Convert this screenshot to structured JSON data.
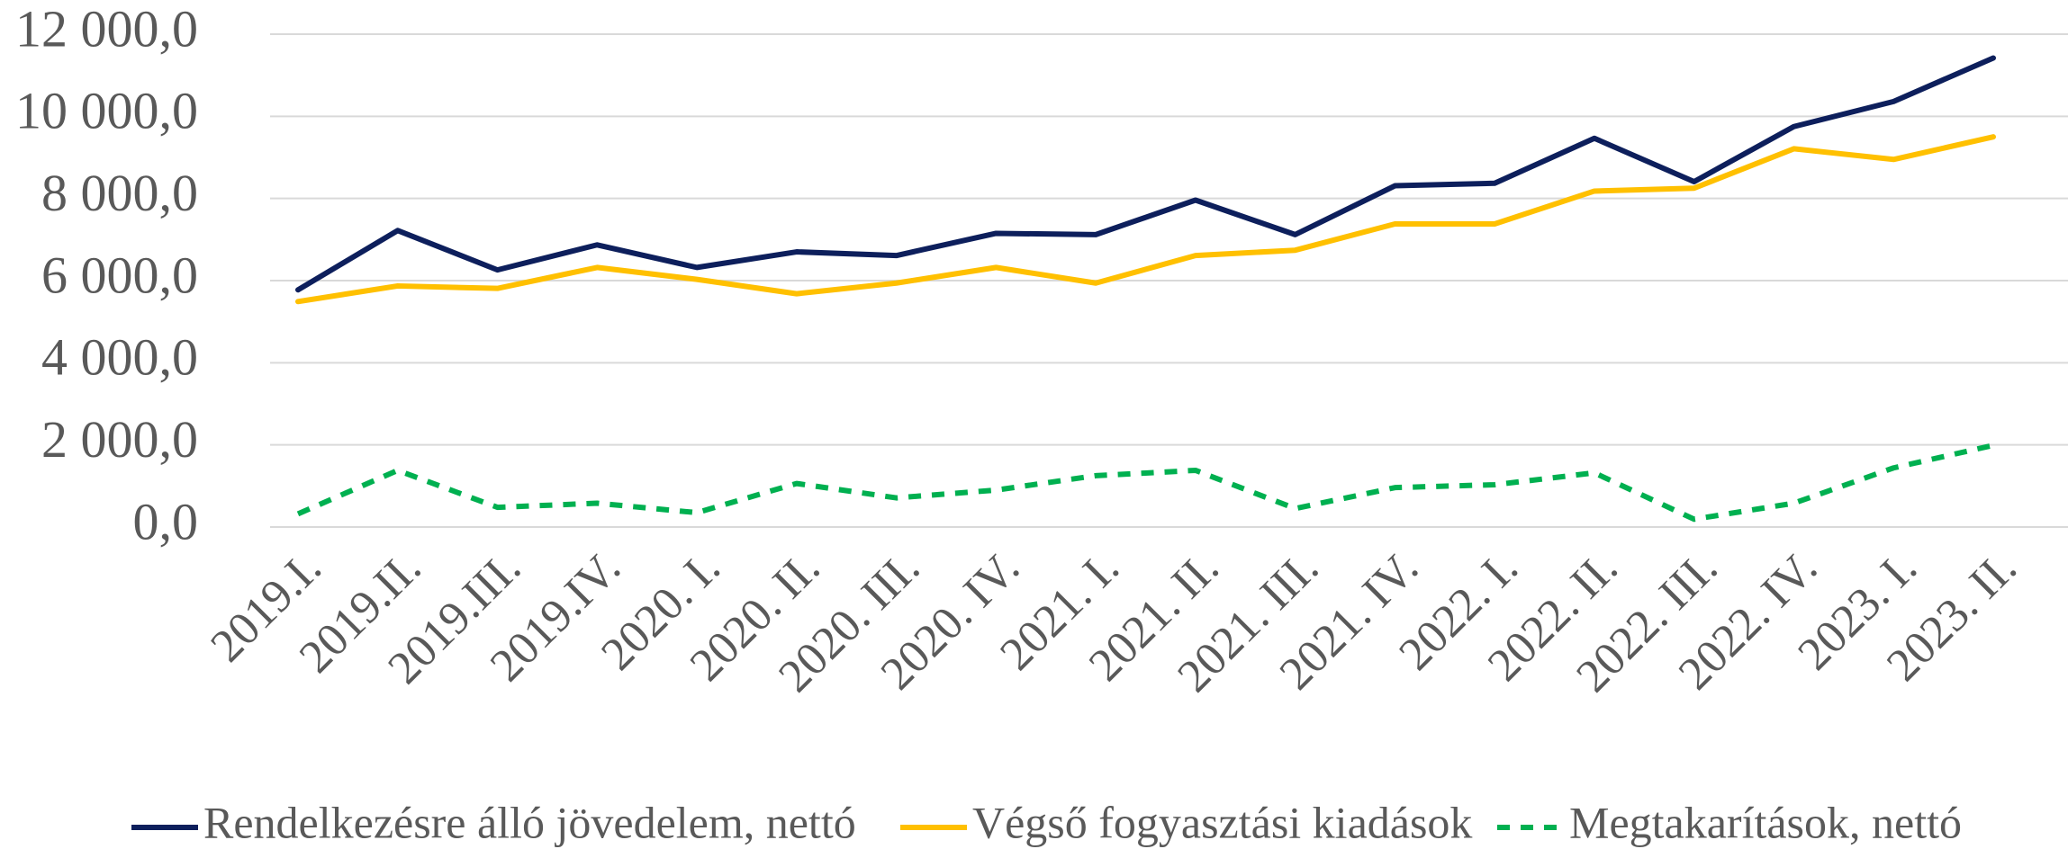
{
  "chart_data": {
    "type": "line",
    "categories": [
      "2019.I.",
      "2019.II.",
      "2019.III.",
      "2019.IV.",
      "2020. I.",
      "2020. II.",
      "2020. III.",
      "2020. IV.",
      "2021. I.",
      "2021. II.",
      "2021. III.",
      "2021. IV.",
      "2022. I.",
      "2022. II.",
      "2022. III.",
      "2022. IV.",
      "2023. I.",
      "2023. II."
    ],
    "series": [
      {
        "name": "Rendelkezésre álló jövedelem, nettó",
        "color": "#0d1f5c",
        "dash": false,
        "values": [
          5775,
          7220,
          6260,
          6870,
          6320,
          6700,
          6610,
          7150,
          7120,
          7960,
          7120,
          8310,
          8370,
          9465,
          8410,
          9750,
          10360,
          11420
        ]
      },
      {
        "name": "Végső fogyasztási kiadások",
        "color": "#ffc000",
        "dash": false,
        "values": [
          5490,
          5870,
          5810,
          6320,
          6030,
          5680,
          5940,
          6320,
          5940,
          6610,
          6740,
          7380,
          7380,
          8180,
          8250,
          9210,
          8950,
          9500
        ]
      },
      {
        "name": "Megtakarítások, nettó",
        "color": "#00b050",
        "dash": true,
        "values": [
          320,
          1380,
          480,
          580,
          350,
          1060,
          710,
          900,
          1250,
          1380,
          450,
          960,
          1030,
          1320,
          190,
          580,
          1440,
          1990
        ]
      }
    ],
    "ylim": [
      0,
      12000
    ],
    "yticks": [
      {
        "value": 0,
        "label": "0,0"
      },
      {
        "value": 2000,
        "label": "2 000,0"
      },
      {
        "value": 4000,
        "label": "4 000,0"
      },
      {
        "value": 6000,
        "label": "6 000,0"
      },
      {
        "value": 8000,
        "label": "8 000,0"
      },
      {
        "value": 10000,
        "label": "10 000,0"
      },
      {
        "value": 12000,
        "label": "12 000,0"
      }
    ],
    "grid": true,
    "legend": "bottom"
  }
}
